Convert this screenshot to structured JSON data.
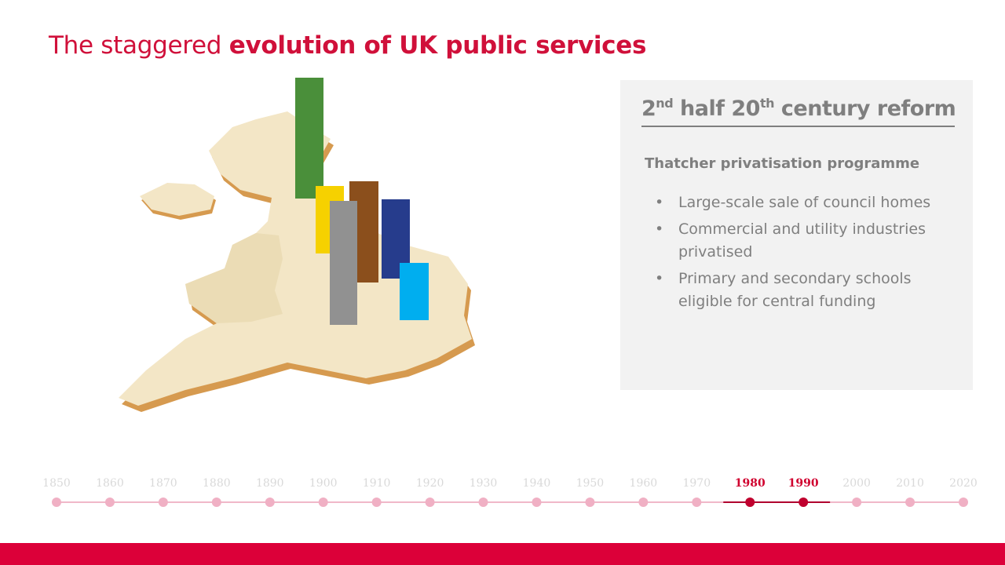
{
  "header": {
    "title_plain": "The staggered ",
    "title_bold": "evolution of UK public services"
  },
  "panel": {
    "heading": {
      "num1": "2",
      "sup1": "nd",
      "mid": " half 20",
      "sup2": "th",
      "rest": " century reform"
    },
    "subheading": "Thatcher privatisation programme",
    "bullets": [
      {
        "lines": [
          "Large-scale sale of council homes"
        ]
      },
      {
        "lines": [
          "Commercial and utility industries",
          "privatised"
        ]
      },
      {
        "lines": [
          "Primary and secondary schools",
          "eligible for central funding"
        ]
      }
    ]
  },
  "timeline": {
    "items": [
      {
        "label": "1850",
        "active": false
      },
      {
        "label": "1860",
        "active": false
      },
      {
        "label": "1870",
        "active": false
      },
      {
        "label": "1880",
        "active": false
      },
      {
        "label": "1890",
        "active": false
      },
      {
        "label": "1900",
        "active": false
      },
      {
        "label": "1910",
        "active": false
      },
      {
        "label": "1920",
        "active": false
      },
      {
        "label": "1930",
        "active": false
      },
      {
        "label": "1940",
        "active": false
      },
      {
        "label": "1950",
        "active": false
      },
      {
        "label": "1960",
        "active": false
      },
      {
        "label": "1970",
        "active": false
      },
      {
        "label": "1980",
        "active": true
      },
      {
        "label": "1990",
        "active": true
      },
      {
        "label": "2000",
        "active": false
      },
      {
        "label": "2010",
        "active": false
      },
      {
        "label": "2020",
        "active": false
      }
    ]
  }
}
